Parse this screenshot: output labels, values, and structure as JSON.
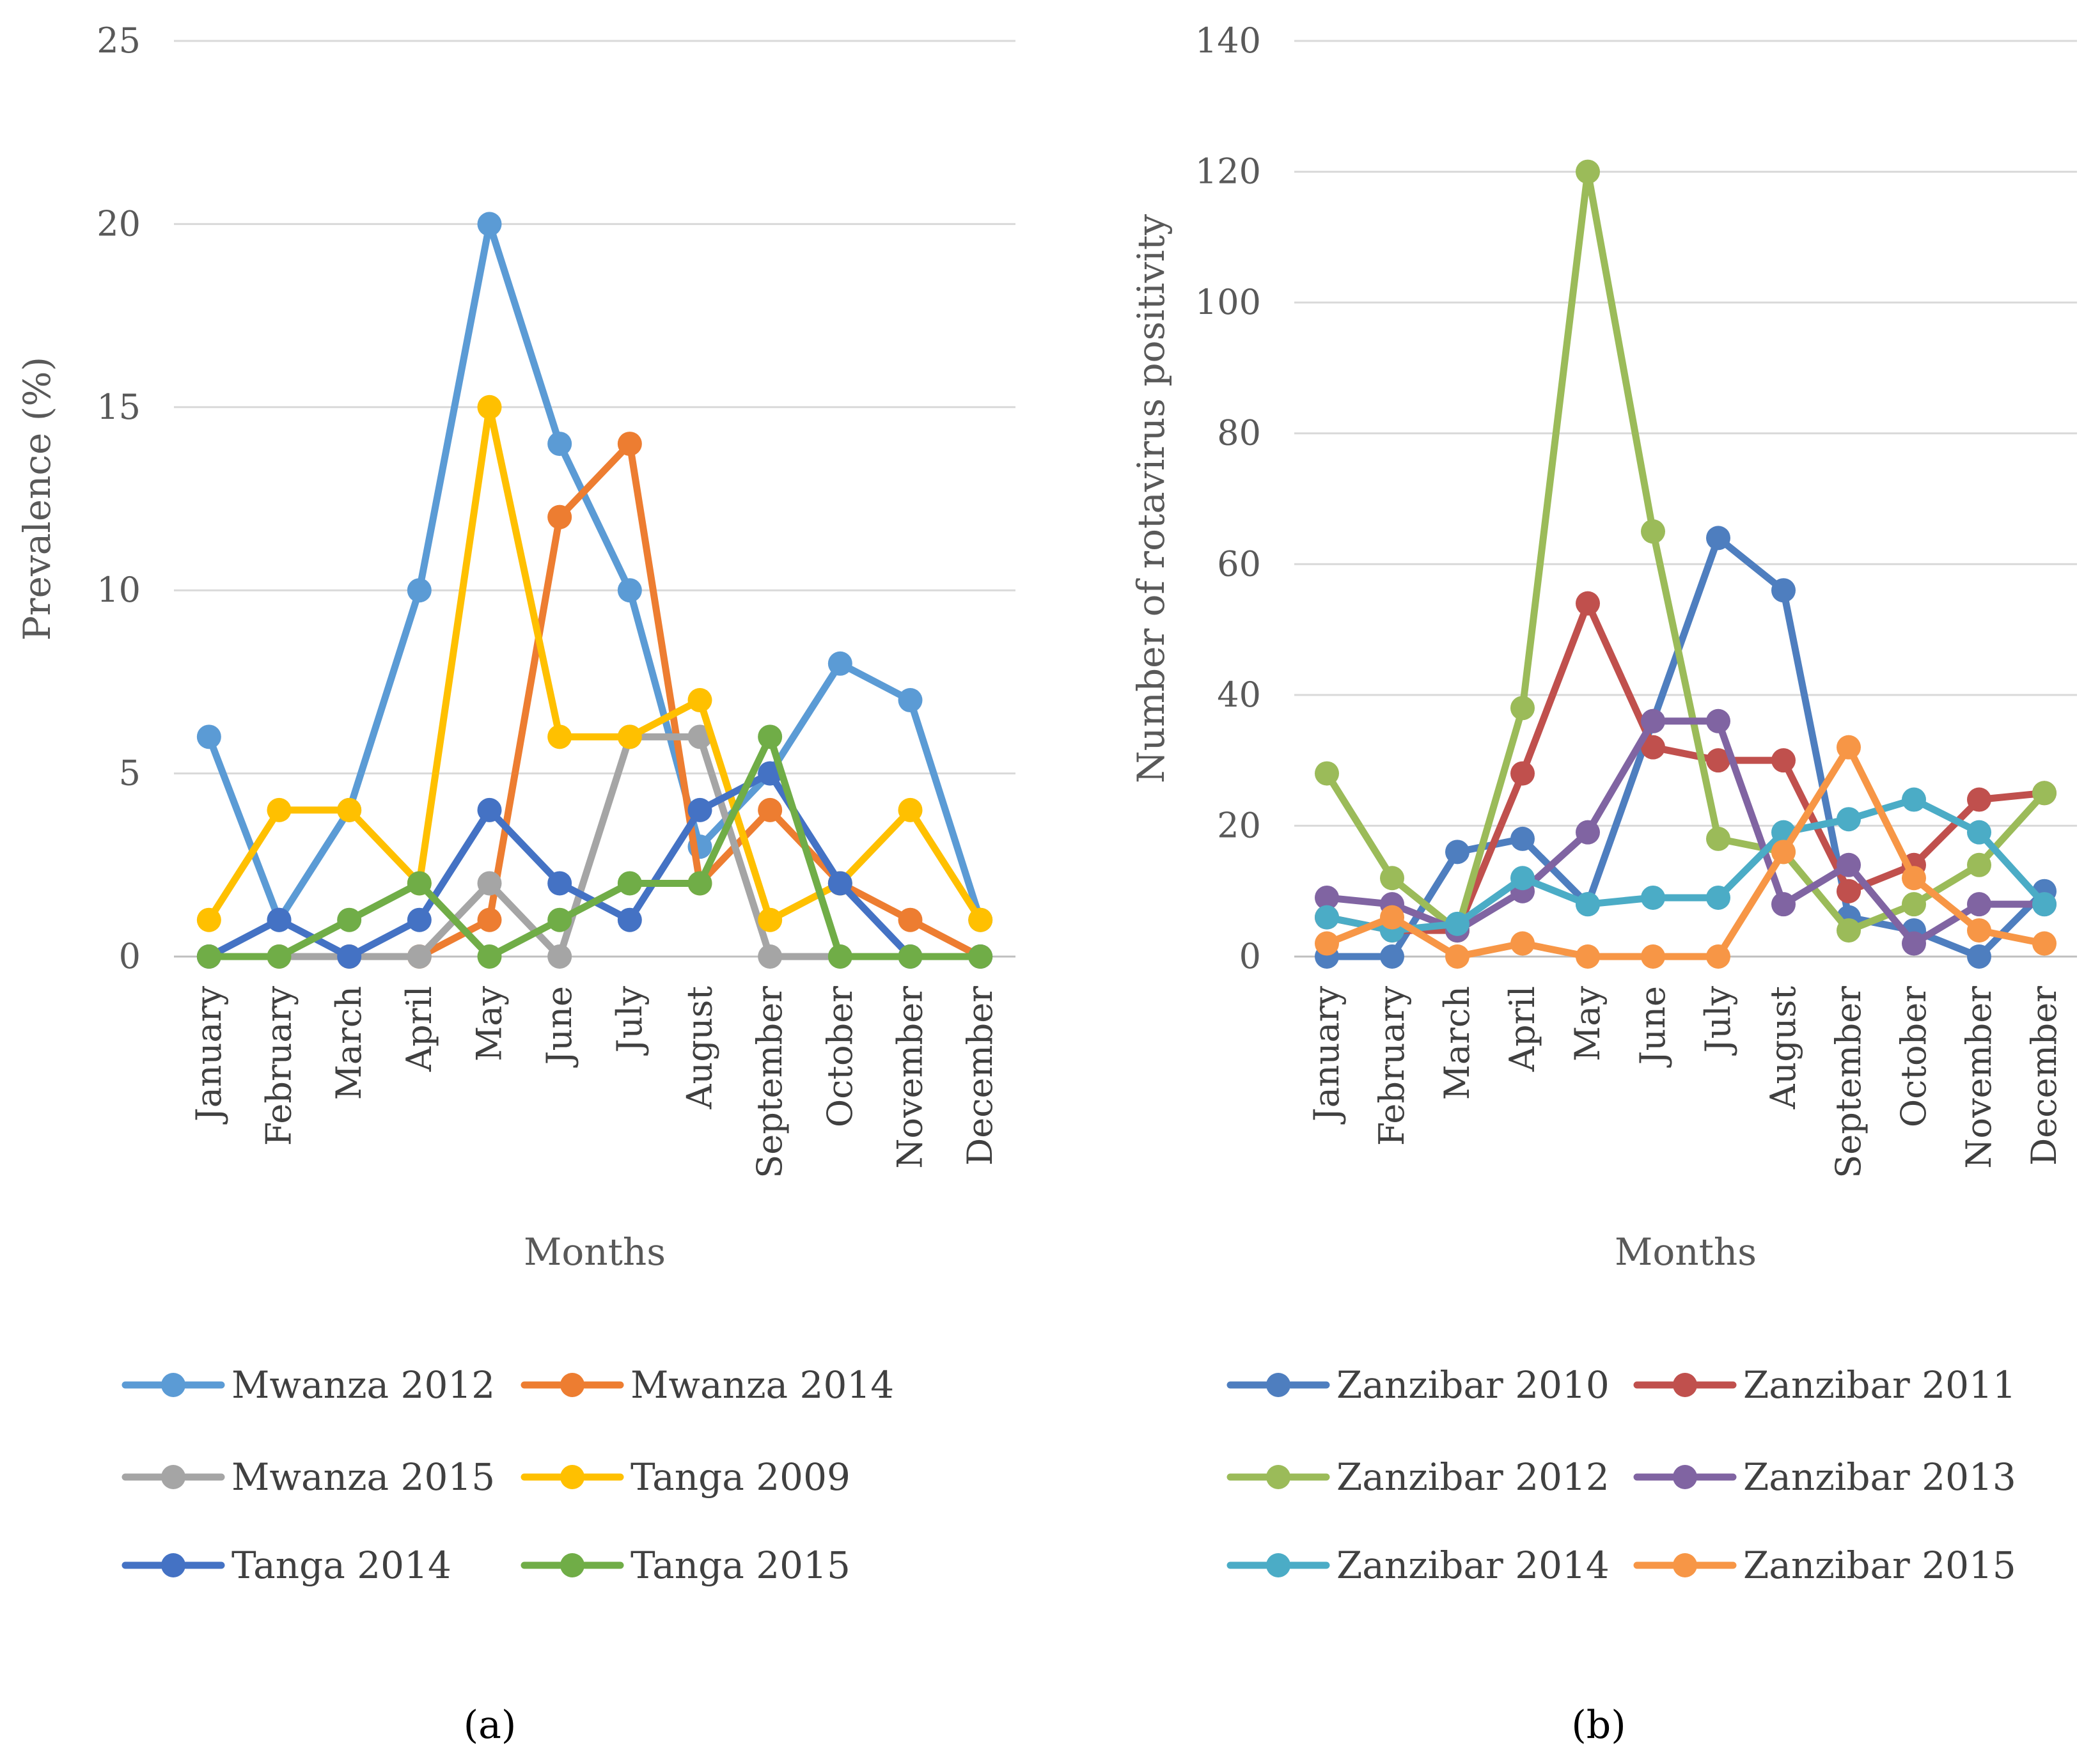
{
  "figure": {
    "panels": [
      {
        "label": "(a)"
      },
      {
        "label": "(b)"
      }
    ]
  },
  "chart_data": [
    {
      "type": "line",
      "panel": "(a)",
      "title": "",
      "xlabel": "Months",
      "ylabel": "Prevalence (%)",
      "ylim": [
        0,
        25
      ],
      "yticks": [
        0,
        5,
        10,
        15,
        20,
        25
      ],
      "grid": true,
      "legend_position": "bottom",
      "categories": [
        "January",
        "February",
        "March",
        "April",
        "May",
        "June",
        "July",
        "August",
        "September",
        "October",
        "November",
        "December"
      ],
      "series": [
        {
          "name": "Mwanza 2012",
          "color": "#5B9BD5",
          "values": [
            6,
            1,
            4,
            10,
            20,
            14,
            10,
            3,
            5,
            8,
            7,
            1
          ]
        },
        {
          "name": "Mwanza 2014",
          "color": "#ED7D31",
          "values": [
            0,
            0,
            0,
            0,
            1,
            12,
            14,
            2,
            4,
            2,
            1,
            0
          ]
        },
        {
          "name": "Mwanza 2015",
          "color": "#A5A5A5",
          "values": [
            0,
            0,
            0,
            0,
            2,
            0,
            6,
            6,
            0,
            0,
            0,
            0
          ]
        },
        {
          "name": "Tanga  2009",
          "color": "#FFC000",
          "values": [
            1,
            4,
            4,
            2,
            15,
            6,
            6,
            7,
            1,
            2,
            4,
            1
          ]
        },
        {
          "name": "Tanga 2014",
          "color": "#4472C4",
          "values": [
            0,
            1,
            0,
            1,
            4,
            2,
            1,
            4,
            5,
            2,
            0,
            0
          ]
        },
        {
          "name": "Tanga 2015",
          "color": "#70AD47",
          "values": [
            0,
            0,
            1,
            2,
            0,
            1,
            2,
            2,
            6,
            0,
            0,
            0
          ]
        }
      ]
    },
    {
      "type": "line",
      "panel": "(b)",
      "title": "",
      "xlabel": "Months",
      "ylabel": "Number of rotavirus positivity",
      "ylim": [
        0,
        140
      ],
      "yticks": [
        0,
        20,
        40,
        60,
        80,
        100,
        120,
        140
      ],
      "grid": true,
      "legend_position": "bottom",
      "categories": [
        "January",
        "February",
        "March",
        "April",
        "May",
        "June",
        "July",
        "August",
        "September",
        "October",
        "November",
        "December"
      ],
      "series": [
        {
          "name": "Zanzibar 2010",
          "color": "#4E7EBF",
          "values": [
            0,
            0,
            16,
            18,
            8,
            36,
            64,
            56,
            6,
            4,
            0,
            10
          ]
        },
        {
          "name": "Zanzibar 2011",
          "color": "#C0504D",
          "values": [
            6,
            4,
            4,
            28,
            54,
            32,
            30,
            30,
            10,
            14,
            24,
            25
          ]
        },
        {
          "name": "Zanzibar 2012",
          "color": "#9BBB59",
          "values": [
            28,
            12,
            4,
            38,
            120,
            65,
            18,
            16,
            4,
            8,
            14,
            25
          ]
        },
        {
          "name": "Zanzibar 2013",
          "color": "#8064A2",
          "values": [
            9,
            8,
            4,
            10,
            19,
            36,
            36,
            8,
            14,
            2,
            8,
            8
          ]
        },
        {
          "name": "Zanzibar 2014",
          "color": "#4BACC6",
          "values": [
            6,
            4,
            5,
            12,
            8,
            9,
            9,
            19,
            21,
            24,
            19,
            8
          ]
        },
        {
          "name": "Zanzibar 2015",
          "color": "#F79646",
          "values": [
            2,
            6,
            0,
            2,
            0,
            0,
            0,
            16,
            32,
            12,
            4,
            2
          ]
        }
      ]
    }
  ]
}
